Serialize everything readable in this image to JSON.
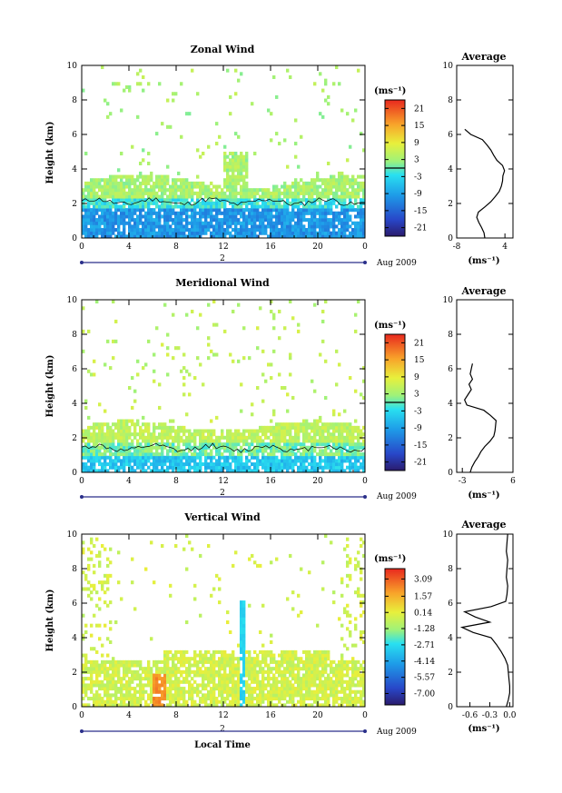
{
  "chart_data": [
    {
      "type": "heatmap",
      "title": "Zonal Wind",
      "ylabel": "Height (km)",
      "xlabel": "",
      "x_ticks": [
        "0",
        "4",
        "8",
        "12",
        "16",
        "20",
        "0"
      ],
      "y_ticks": [
        "0",
        "2",
        "4",
        "6",
        "8",
        "10"
      ],
      "xlim": [
        0,
        24
      ],
      "ylim": [
        0,
        10
      ],
      "date_mark": "2",
      "date_label": "Aug 2009",
      "colorbar": {
        "unit": "(ms⁻¹)",
        "ticks": [
          "21",
          "15",
          "9",
          "3",
          "-3",
          "-9",
          "-15",
          "-21"
        ],
        "range": [
          -24,
          24
        ],
        "zero_line": 0
      },
      "profile": {
        "title": "Average",
        "xlabel": "(ms⁻¹)",
        "x_ticks": [
          "-8",
          "4"
        ],
        "y_ticks": [
          "0",
          "2",
          "4",
          "6",
          "8",
          "10"
        ],
        "xlim": [
          -8,
          6
        ],
        "heights_km": [
          0,
          0.3,
          0.6,
          0.9,
          1.2,
          1.5,
          1.8,
          2.1,
          2.4,
          2.7,
          3.0,
          3.3,
          3.6,
          3.9,
          4.2,
          4.5,
          4.8,
          5.1,
          5.4,
          5.7,
          6.0,
          6.3
        ],
        "values": [
          -1.0,
          -1.2,
          -1.8,
          -2.5,
          -3.0,
          -2.6,
          -1.0,
          0.5,
          1.6,
          2.6,
          3.1,
          3.4,
          3.5,
          3.9,
          3.4,
          2.0,
          1.2,
          0.5,
          -0.5,
          -1.6,
          -4.5,
          -6.0
        ]
      },
      "contour_km": 2.1
    },
    {
      "type": "heatmap",
      "title": "Meridional Wind",
      "ylabel": "Height (km)",
      "xlabel": "",
      "x_ticks": [
        "0",
        "4",
        "8",
        "12",
        "16",
        "20",
        "0"
      ],
      "y_ticks": [
        "0",
        "2",
        "4",
        "6",
        "8",
        "10"
      ],
      "xlim": [
        0,
        24
      ],
      "ylim": [
        0,
        10
      ],
      "date_mark": "2",
      "date_label": "Aug 2009",
      "colorbar": {
        "unit": "(ms⁻¹)",
        "ticks": [
          "21",
          "15",
          "9",
          "3",
          "-3",
          "-9",
          "-15",
          "-21"
        ],
        "range": [
          -24,
          24
        ],
        "zero_line": 0
      },
      "profile": {
        "title": "Average",
        "xlabel": "(ms⁻¹)",
        "x_ticks": [
          "-3",
          "6"
        ],
        "y_ticks": [
          "0",
          "2",
          "4",
          "6",
          "8",
          "10"
        ],
        "xlim": [
          -4,
          6
        ],
        "heights_km": [
          0,
          0.3,
          0.6,
          0.9,
          1.2,
          1.5,
          1.8,
          2.1,
          2.4,
          2.7,
          3.0,
          3.3,
          3.6,
          3.9,
          4.2,
          4.5,
          4.8,
          5.1,
          5.4,
          5.7,
          6.0,
          6.3
        ],
        "values": [
          -1.6,
          -1.3,
          -0.8,
          -0.2,
          0.3,
          1.0,
          1.9,
          2.6,
          2.8,
          2.9,
          3.0,
          2.0,
          0.8,
          -2.2,
          -2.6,
          -2.0,
          -1.4,
          -1.8,
          -1.2,
          -1.6,
          -1.4,
          -1.2
        ]
      },
      "contour_km": 1.4
    },
    {
      "type": "heatmap",
      "title": "Vertical Wind",
      "ylabel": "Height (km)",
      "xlabel": "Local Time",
      "x_ticks": [
        "0",
        "4",
        "8",
        "12",
        "16",
        "20",
        "0"
      ],
      "y_ticks": [
        "0",
        "2",
        "4",
        "6",
        "8",
        "10"
      ],
      "xlim": [
        0,
        24
      ],
      "ylim": [
        0,
        10
      ],
      "date_mark": "2",
      "date_label": "Aug 2009",
      "colorbar": {
        "unit": "(ms⁻¹)",
        "ticks": [
          "3.09",
          "1.57",
          "0.14",
          "-1.28",
          "-2.71",
          "-4.14",
          "-5.57",
          "-7.00"
        ],
        "range": [
          -8.0,
          4.0
        ]
      },
      "profile": {
        "title": "Average",
        "xlabel": "(ms⁻¹)",
        "x_ticks": [
          "-0.6",
          "-0.3",
          "0.0"
        ],
        "y_ticks": [
          "0",
          "2",
          "4",
          "6",
          "8",
          "10"
        ],
        "xlim": [
          -0.8,
          0.05
        ],
        "heights_km": [
          0,
          0.4,
          0.8,
          1.2,
          1.6,
          2.0,
          2.4,
          2.8,
          3.2,
          3.6,
          4.0,
          4.3,
          4.6,
          4.9,
          5.2,
          5.5,
          5.8,
          6.1,
          6.5,
          7.0,
          7.5,
          8.0,
          8.5,
          9.0,
          9.5,
          10.0
        ],
        "values": [
          -0.05,
          -0.02,
          0.0,
          0.0,
          -0.01,
          -0.02,
          -0.03,
          -0.07,
          -0.13,
          -0.2,
          -0.28,
          -0.55,
          -0.72,
          -0.3,
          -0.52,
          -0.68,
          -0.28,
          -0.06,
          -0.04,
          -0.03,
          -0.05,
          -0.04,
          -0.03,
          -0.05,
          -0.04,
          -0.03
        ]
      }
    }
  ]
}
